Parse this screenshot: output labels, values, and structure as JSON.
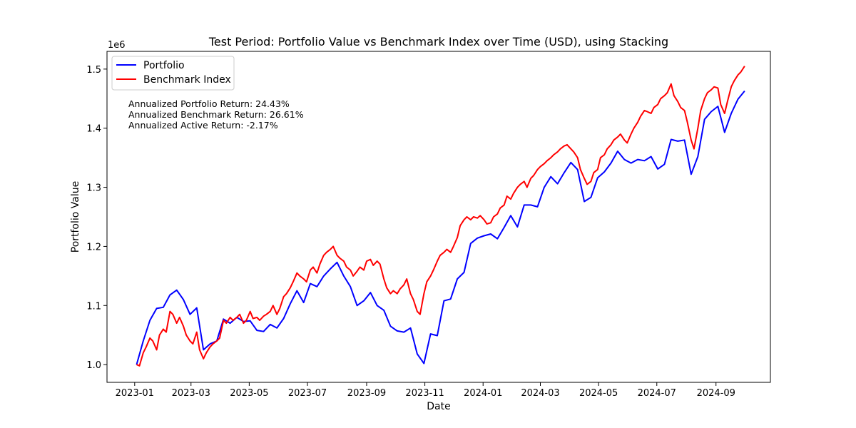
{
  "chart_data": {
    "type": "line",
    "title": "Test Period: Portfolio Value vs Benchmark Index over Time (USD), using Stacking",
    "xlabel": "Date",
    "ylabel": "Portfolio Value",
    "y_offset_text": "1e6",
    "xlim": [
      "2022-12-03",
      "2024-10-28"
    ],
    "ylim": [
      0.97,
      1.53
    ],
    "x_ticks": [
      "2023-01-01",
      "2023-03-01",
      "2023-05-01",
      "2023-07-01",
      "2023-09-01",
      "2023-11-01",
      "2024-01-01",
      "2024-03-01",
      "2024-05-01",
      "2024-07-01",
      "2024-09-01"
    ],
    "x_tick_labels": [
      "2023-01",
      "2023-03",
      "2023-05",
      "2023-07",
      "2023-09",
      "2023-11",
      "2024-01",
      "2024-03",
      "2024-05",
      "2024-07",
      "2024-09"
    ],
    "y_ticks": [
      1.0,
      1.1,
      1.2,
      1.3,
      1.4,
      1.5
    ],
    "y_tick_labels": [
      "1.0",
      "1.1",
      "1.2",
      "1.3",
      "1.4",
      "1.5"
    ],
    "grid": false,
    "legend_position": "top-left",
    "annotations": [
      "Annualized Portfolio Return: 24.43%",
      "Annualized Benchmark Return: 26.61%",
      "Annualized Active Return: -2.17%"
    ],
    "series": [
      {
        "name": "Portfolio",
        "color": "#0000ff",
        "x": [
          "2023-01-03",
          "2023-01-10",
          "2023-01-17",
          "2023-01-24",
          "2023-01-31",
          "2023-02-07",
          "2023-02-14",
          "2023-02-21",
          "2023-02-28",
          "2023-03-07",
          "2023-03-14",
          "2023-03-21",
          "2023-03-28",
          "2023-04-04",
          "2023-04-11",
          "2023-04-18",
          "2023-04-25",
          "2023-05-02",
          "2023-05-09",
          "2023-05-16",
          "2023-05-23",
          "2023-05-30",
          "2023-06-06",
          "2023-06-13",
          "2023-06-20",
          "2023-06-27",
          "2023-07-04",
          "2023-07-11",
          "2023-07-18",
          "2023-07-25",
          "2023-08-01",
          "2023-08-08",
          "2023-08-15",
          "2023-08-22",
          "2023-08-29",
          "2023-09-05",
          "2023-09-12",
          "2023-09-19",
          "2023-09-26",
          "2023-10-03",
          "2023-10-10",
          "2023-10-17",
          "2023-10-24",
          "2023-10-31",
          "2023-11-07",
          "2023-11-14",
          "2023-11-21",
          "2023-11-28",
          "2023-12-05",
          "2023-12-12",
          "2023-12-19",
          "2023-12-26",
          "2024-01-02",
          "2024-01-09",
          "2024-01-16",
          "2024-01-23",
          "2024-01-30",
          "2024-02-06",
          "2024-02-13",
          "2024-02-20",
          "2024-02-27",
          "2024-03-05",
          "2024-03-12",
          "2024-03-19",
          "2024-03-26",
          "2024-04-02",
          "2024-04-09",
          "2024-04-16",
          "2024-04-23",
          "2024-04-30",
          "2024-05-07",
          "2024-05-14",
          "2024-05-21",
          "2024-05-28",
          "2024-06-04",
          "2024-06-11",
          "2024-06-18",
          "2024-06-25",
          "2024-07-02",
          "2024-07-09",
          "2024-07-16",
          "2024-07-23",
          "2024-07-30",
          "2024-08-06",
          "2024-08-13",
          "2024-08-20",
          "2024-08-27",
          "2024-09-03",
          "2024-09-10",
          "2024-09-17",
          "2024-09-24",
          "2024-10-01"
        ],
        "values": [
          1.0,
          1.04,
          1.075,
          1.095,
          1.097,
          1.118,
          1.126,
          1.11,
          1.085,
          1.096,
          1.025,
          1.035,
          1.04,
          1.077,
          1.07,
          1.08,
          1.073,
          1.074,
          1.058,
          1.056,
          1.068,
          1.062,
          1.078,
          1.103,
          1.125,
          1.105,
          1.137,
          1.132,
          1.15,
          1.162,
          1.173,
          1.15,
          1.132,
          1.1,
          1.108,
          1.122,
          1.1,
          1.092,
          1.065,
          1.057,
          1.055,
          1.062,
          1.018,
          1.002,
          1.052,
          1.049,
          1.108,
          1.111,
          1.145,
          1.156,
          1.205,
          1.214,
          1.218,
          1.221,
          1.213,
          1.232,
          1.252,
          1.233,
          1.27,
          1.27,
          1.267,
          1.3,
          1.318,
          1.306,
          1.325,
          1.342,
          1.33,
          1.276,
          1.283,
          1.316,
          1.326,
          1.341,
          1.361,
          1.347,
          1.341,
          1.347,
          1.345,
          1.352,
          1.331,
          1.339,
          1.381,
          1.378,
          1.38,
          1.322,
          1.352,
          1.415,
          1.428,
          1.437,
          1.393,
          1.425,
          1.449,
          1.463
        ]
      },
      {
        "name": "Benchmark Index",
        "color": "#ff0000",
        "x": [
          "2023-01-03",
          "2023-01-06",
          "2023-01-10",
          "2023-01-13",
          "2023-01-17",
          "2023-01-20",
          "2023-01-24",
          "2023-01-27",
          "2023-01-31",
          "2023-02-03",
          "2023-02-07",
          "2023-02-10",
          "2023-02-14",
          "2023-02-17",
          "2023-02-21",
          "2023-02-24",
          "2023-02-28",
          "2023-03-03",
          "2023-03-07",
          "2023-03-10",
          "2023-03-14",
          "2023-03-17",
          "2023-03-21",
          "2023-03-24",
          "2023-03-28",
          "2023-03-31",
          "2023-04-04",
          "2023-04-07",
          "2023-04-11",
          "2023-04-14",
          "2023-04-18",
          "2023-04-21",
          "2023-04-25",
          "2023-04-28",
          "2023-05-02",
          "2023-05-05",
          "2023-05-09",
          "2023-05-12",
          "2023-05-16",
          "2023-05-19",
          "2023-05-23",
          "2023-05-26",
          "2023-05-30",
          "2023-06-02",
          "2023-06-06",
          "2023-06-09",
          "2023-06-13",
          "2023-06-16",
          "2023-06-20",
          "2023-06-23",
          "2023-06-27",
          "2023-06-30",
          "2023-07-04",
          "2023-07-07",
          "2023-07-11",
          "2023-07-14",
          "2023-07-18",
          "2023-07-21",
          "2023-07-25",
          "2023-07-28",
          "2023-08-01",
          "2023-08-04",
          "2023-08-08",
          "2023-08-11",
          "2023-08-15",
          "2023-08-18",
          "2023-08-22",
          "2023-08-25",
          "2023-08-29",
          "2023-09-01",
          "2023-09-05",
          "2023-09-08",
          "2023-09-12",
          "2023-09-15",
          "2023-09-19",
          "2023-09-22",
          "2023-09-26",
          "2023-09-29",
          "2023-10-03",
          "2023-10-06",
          "2023-10-10",
          "2023-10-13",
          "2023-10-17",
          "2023-10-20",
          "2023-10-24",
          "2023-10-27",
          "2023-10-31",
          "2023-11-03",
          "2023-11-07",
          "2023-11-10",
          "2023-11-14",
          "2023-11-17",
          "2023-11-21",
          "2023-11-24",
          "2023-11-28",
          "2023-12-01",
          "2023-12-05",
          "2023-12-08",
          "2023-12-12",
          "2023-12-15",
          "2023-12-19",
          "2023-12-22",
          "2023-12-26",
          "2023-12-29",
          "2024-01-02",
          "2024-01-05",
          "2024-01-09",
          "2024-01-12",
          "2024-01-16",
          "2024-01-19",
          "2024-01-23",
          "2024-01-26",
          "2024-01-30",
          "2024-02-02",
          "2024-02-06",
          "2024-02-09",
          "2024-02-13",
          "2024-02-16",
          "2024-02-20",
          "2024-02-23",
          "2024-02-27",
          "2024-03-01",
          "2024-03-05",
          "2024-03-08",
          "2024-03-12",
          "2024-03-15",
          "2024-03-19",
          "2024-03-22",
          "2024-03-26",
          "2024-03-29",
          "2024-04-02",
          "2024-04-05",
          "2024-04-09",
          "2024-04-12",
          "2024-04-16",
          "2024-04-19",
          "2024-04-23",
          "2024-04-26",
          "2024-04-30",
          "2024-05-03",
          "2024-05-07",
          "2024-05-10",
          "2024-05-14",
          "2024-05-17",
          "2024-05-21",
          "2024-05-24",
          "2024-05-28",
          "2024-05-31",
          "2024-06-04",
          "2024-06-07",
          "2024-06-11",
          "2024-06-14",
          "2024-06-18",
          "2024-06-21",
          "2024-06-25",
          "2024-06-28",
          "2024-07-02",
          "2024-07-05",
          "2024-07-09",
          "2024-07-12",
          "2024-07-16",
          "2024-07-19",
          "2024-07-23",
          "2024-07-26",
          "2024-07-30",
          "2024-08-02",
          "2024-08-06",
          "2024-08-09",
          "2024-08-13",
          "2024-08-16",
          "2024-08-20",
          "2024-08-23",
          "2024-08-27",
          "2024-08-30",
          "2024-09-03",
          "2024-09-06",
          "2024-09-10",
          "2024-09-13",
          "2024-09-17",
          "2024-09-20",
          "2024-09-24",
          "2024-09-27",
          "2024-10-01"
        ],
        "values": [
          1.0,
          0.998,
          1.02,
          1.03,
          1.045,
          1.04,
          1.025,
          1.05,
          1.06,
          1.055,
          1.09,
          1.085,
          1.07,
          1.08,
          1.065,
          1.05,
          1.04,
          1.035,
          1.055,
          1.025,
          1.01,
          1.02,
          1.03,
          1.035,
          1.04,
          1.045,
          1.075,
          1.07,
          1.08,
          1.075,
          1.08,
          1.085,
          1.07,
          1.075,
          1.09,
          1.078,
          1.08,
          1.075,
          1.082,
          1.085,
          1.09,
          1.1,
          1.085,
          1.095,
          1.115,
          1.12,
          1.13,
          1.14,
          1.155,
          1.15,
          1.145,
          1.14,
          1.16,
          1.165,
          1.155,
          1.17,
          1.185,
          1.19,
          1.195,
          1.2,
          1.185,
          1.18,
          1.175,
          1.165,
          1.16,
          1.15,
          1.158,
          1.165,
          1.16,
          1.175,
          1.178,
          1.168,
          1.175,
          1.17,
          1.145,
          1.13,
          1.12,
          1.125,
          1.12,
          1.128,
          1.135,
          1.145,
          1.12,
          1.11,
          1.09,
          1.085,
          1.12,
          1.14,
          1.15,
          1.16,
          1.175,
          1.185,
          1.19,
          1.195,
          1.19,
          1.2,
          1.215,
          1.235,
          1.245,
          1.25,
          1.245,
          1.25,
          1.248,
          1.252,
          1.245,
          1.238,
          1.24,
          1.25,
          1.255,
          1.265,
          1.27,
          1.285,
          1.28,
          1.29,
          1.3,
          1.305,
          1.31,
          1.3,
          1.315,
          1.32,
          1.33,
          1.335,
          1.34,
          1.345,
          1.35,
          1.355,
          1.36,
          1.365,
          1.37,
          1.372,
          1.365,
          1.36,
          1.35,
          1.33,
          1.315,
          1.305,
          1.31,
          1.325,
          1.33,
          1.35,
          1.355,
          1.365,
          1.372,
          1.38,
          1.385,
          1.39,
          1.38,
          1.375,
          1.39,
          1.4,
          1.41,
          1.42,
          1.43,
          1.428,
          1.425,
          1.435,
          1.44,
          1.45,
          1.455,
          1.46,
          1.475,
          1.455,
          1.445,
          1.435,
          1.43,
          1.41,
          1.38,
          1.365,
          1.4,
          1.43,
          1.45,
          1.46,
          1.465,
          1.47,
          1.468,
          1.44,
          1.425,
          1.445,
          1.47,
          1.48,
          1.49,
          1.495,
          1.505
        ]
      }
    ]
  }
}
